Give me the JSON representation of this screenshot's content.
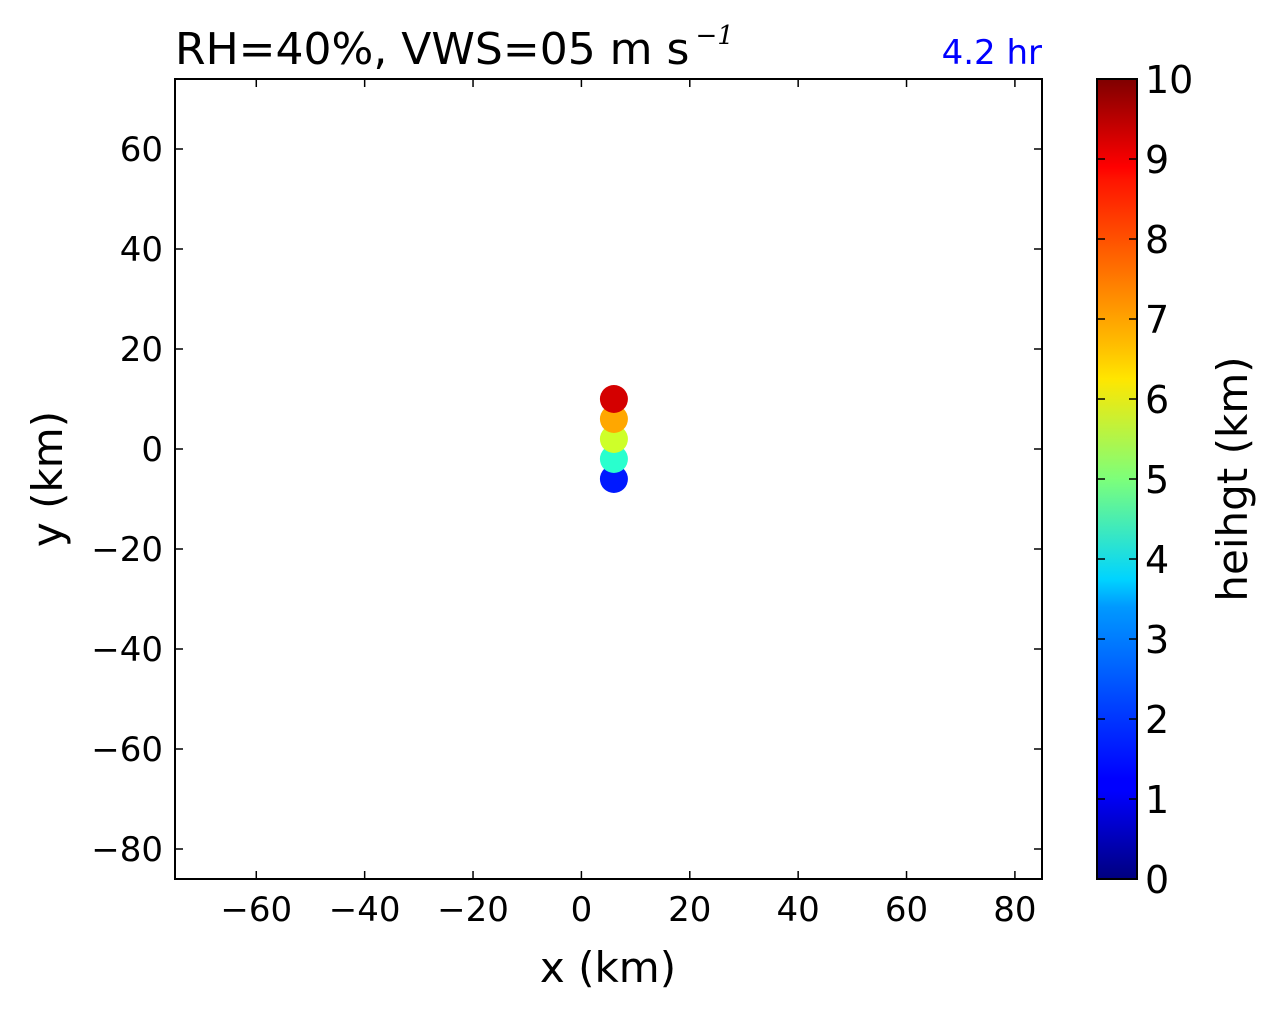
{
  "chart_data": {
    "type": "scatter",
    "title": "RH=40%, VWS=05 m s",
    "title_superscript": "−1",
    "annotation": "4.2 hr",
    "annotation_color": "#0000ff",
    "xlabel": "x (km)",
    "ylabel": "y (km)",
    "xlim": [
      -75,
      85
    ],
    "ylim": [
      -86,
      74
    ],
    "xticks": [
      -60,
      -40,
      -20,
      0,
      20,
      40,
      60,
      80
    ],
    "yticks": [
      -80,
      -60,
      -40,
      -20,
      0,
      20,
      40,
      60
    ],
    "xtick_labels": [
      "−60",
      "−40",
      "−20",
      "0",
      "20",
      "40",
      "60",
      "80"
    ],
    "ytick_labels": [
      "−80",
      "−60",
      "−40",
      "−20",
      "0",
      "20",
      "40",
      "60"
    ],
    "grid": false,
    "points": [
      {
        "x": 6,
        "y": -6,
        "height": 1.0,
        "color": "#0019ff"
      },
      {
        "x": 6,
        "y": -2,
        "height": 3.5,
        "color": "#29ffce"
      },
      {
        "x": 6,
        "y": 2,
        "height": 6.0,
        "color": "#ceff29"
      },
      {
        "x": 6,
        "y": 6,
        "height": 7.5,
        "color": "#ffa700"
      },
      {
        "x": 6,
        "y": 10,
        "height": 9.5,
        "color": "#d40000"
      }
    ],
    "colorbar": {
      "label": "heihgt (km)",
      "colormap": "jet",
      "range": [
        0,
        10
      ],
      "ticks": [
        0,
        1,
        2,
        3,
        4,
        5,
        6,
        7,
        8,
        9,
        10
      ],
      "tick_labels": [
        "0",
        "1",
        "2",
        "3",
        "4",
        "5",
        "6",
        "7",
        "8",
        "9",
        "10"
      ]
    }
  }
}
